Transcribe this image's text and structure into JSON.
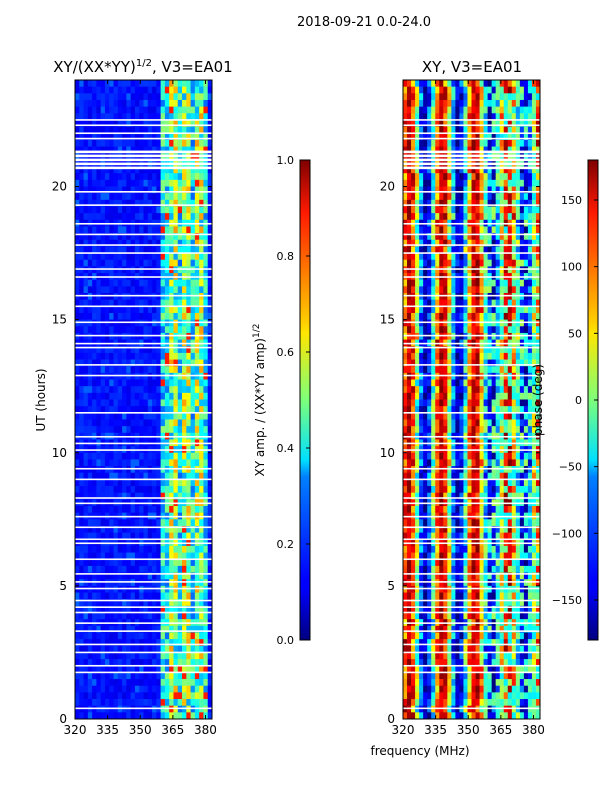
{
  "figure": {
    "suptitle": "2018-09-21 0.0-24.0",
    "shared_xlabel": "frequency (MHz)"
  },
  "chart_data": [
    {
      "type": "heatmap",
      "title_main": "XY/(XX*YY)",
      "title_exp": "1/2",
      "title_tail": ", V3=EA01",
      "xlabel": "",
      "ylabel": "UT (hours)",
      "xlim": [
        320,
        383
      ],
      "ylim": [
        0,
        24
      ],
      "xticks": [
        320,
        335,
        350,
        365,
        380
      ],
      "yticks": [
        0,
        5,
        10,
        15,
        20
      ],
      "colorscale": "jet",
      "colorbar": {
        "label_main": "XY amp. / (XX*YY amp)",
        "label_exp": "1/2",
        "range": [
          0.0,
          1.0
        ],
        "ticks": [
          "0.0",
          "0.2",
          "0.4",
          "0.6",
          "0.8",
          "1.0"
        ],
        "tick_values": [
          0.0,
          0.2,
          0.4,
          0.6,
          0.8,
          1.0
        ]
      },
      "bright_band_mhz": [
        360,
        382
      ],
      "blank_rows_hours": [
        0.4,
        1.75,
        2.0,
        2.5,
        2.8,
        3.3,
        3.6,
        4.0,
        4.2,
        4.45,
        4.9,
        5.15,
        5.45,
        6.0,
        6.6,
        6.75,
        7.2,
        7.6,
        8.1,
        8.3,
        9.0,
        9.4,
        10.1,
        10.35,
        10.6,
        11.5,
        12.9,
        13.3,
        13.95,
        14.1,
        14.4,
        14.9,
        15.5,
        15.9,
        16.6,
        16.9,
        17.5,
        17.8,
        18.2,
        18.6,
        19.3,
        19.8,
        20.7,
        20.85,
        21.0,
        21.15,
        21.3,
        21.8,
        22.0,
        22.3,
        22.5
      ]
    },
    {
      "type": "heatmap",
      "title": "XY, V3=EA01",
      "xlabel": "frequency (MHz)",
      "ylabel": "",
      "xlim": [
        320,
        383
      ],
      "ylim": [
        0,
        24
      ],
      "xticks": [
        320,
        335,
        350,
        365,
        380
      ],
      "yticks": [
        0,
        5,
        10,
        15,
        20
      ],
      "colorscale": "jet",
      "colorbar": {
        "label": "phase (deg)",
        "range": [
          -180,
          180
        ],
        "ticks": [
          "−150",
          "−100",
          "−50",
          "0",
          "50",
          "100",
          "150"
        ],
        "tick_values": [
          -150,
          -100,
          -50,
          0,
          50,
          100,
          150
        ]
      },
      "blank_rows_hours": [
        0.4,
        1.75,
        2.0,
        2.5,
        2.8,
        3.3,
        3.6,
        4.0,
        4.2,
        4.45,
        4.9,
        5.15,
        5.45,
        6.0,
        6.6,
        6.75,
        7.2,
        7.6,
        8.1,
        8.3,
        9.0,
        9.4,
        10.1,
        10.35,
        10.6,
        11.5,
        12.9,
        13.3,
        13.95,
        14.1,
        14.4,
        14.9,
        15.5,
        15.9,
        16.6,
        16.9,
        17.5,
        17.8,
        18.2,
        18.6,
        19.3,
        19.8,
        20.7,
        20.85,
        21.0,
        21.15,
        21.3,
        21.8,
        22.0,
        22.3,
        22.5
      ]
    }
  ]
}
